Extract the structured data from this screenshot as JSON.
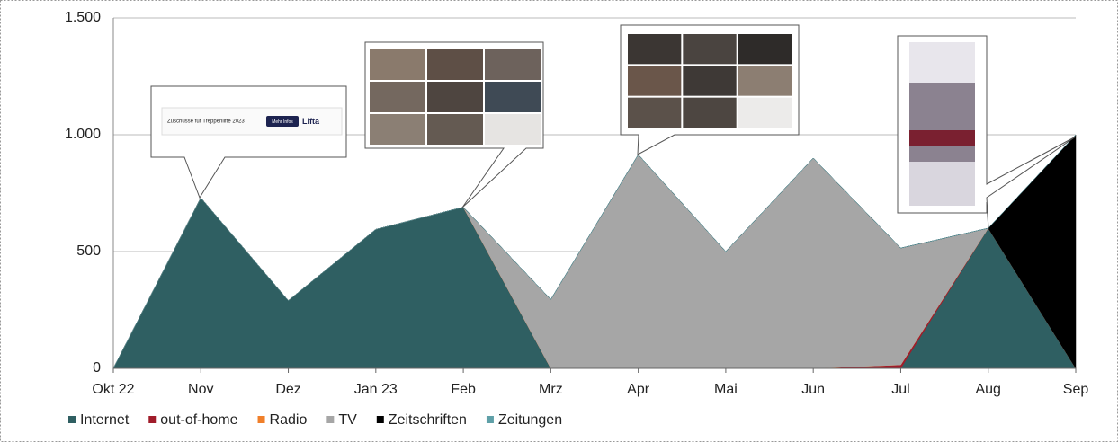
{
  "chart_data": {
    "type": "stacked_area",
    "categories": [
      "Okt 22",
      "Nov",
      "Dez",
      "Jan 23",
      "Feb",
      "Mrz",
      "Apr",
      "Mai",
      "Jun",
      "Jul",
      "Aug",
      "Sep"
    ],
    "series": [
      {
        "name": "Internet",
        "color": "#2f5f62",
        "values": [
          0,
          730,
          290,
          595,
          690,
          0,
          0,
          0,
          0,
          0,
          600,
          0
        ]
      },
      {
        "name": "out-of-home",
        "color": "#a01c2a",
        "values": [
          0,
          0,
          0,
          0,
          0,
          0,
          0,
          0,
          0,
          15,
          0,
          0
        ]
      },
      {
        "name": "Radio",
        "color": "#f07f2a",
        "values": [
          0,
          0,
          0,
          0,
          0,
          0,
          0,
          0,
          0,
          0,
          0,
          0
        ]
      },
      {
        "name": "TV",
        "color": "#a6a6a6",
        "values": [
          0,
          0,
          0,
          0,
          0,
          295,
          915,
          500,
          900,
          500,
          0,
          0
        ]
      },
      {
        "name": "Zeitschriften",
        "color": "#000000",
        "values": [
          0,
          0,
          0,
          0,
          0,
          0,
          0,
          0,
          0,
          0,
          0,
          1000
        ]
      },
      {
        "name": "Zeitungen",
        "color": "#5fa0a8",
        "values": [
          0,
          0,
          0,
          0,
          0,
          0,
          0,
          0,
          0,
          0,
          0,
          0
        ]
      }
    ],
    "ylim": [
      0,
      1500
    ],
    "yticks": [
      0,
      500,
      {
        "value": 1000,
        "label": "1.000"
      },
      {
        "value": 1500,
        "label": "1.500"
      }
    ],
    "grid": true,
    "legend": "bottom",
    "annotations": [
      "Zuschüsse für Treppenlifte 2023",
      "Mehr Infos",
      "Lifta"
    ]
  }
}
